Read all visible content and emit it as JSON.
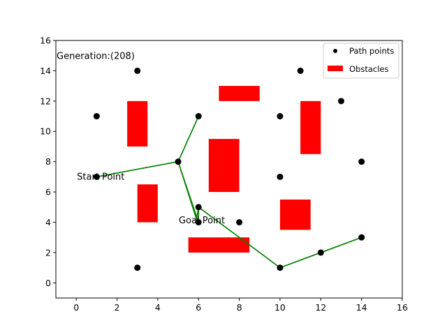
{
  "chart_data": {
    "type": "scatter",
    "title": "",
    "xlabel": "",
    "ylabel": "",
    "xlim": [
      -1,
      16
    ],
    "ylim": [
      -1,
      16
    ],
    "xticks": [
      0,
      2,
      4,
      6,
      8,
      10,
      12,
      14,
      16
    ],
    "yticks": [
      0,
      2,
      4,
      6,
      8,
      10,
      12,
      14,
      16
    ],
    "grid": false,
    "legend_position": "top-right",
    "annotations": [
      {
        "text": "Generation:(208)",
        "x": -1,
        "y": 15
      },
      {
        "text": "Start Point",
        "x": 0,
        "y": 7.05
      },
      {
        "text": "Goal Point",
        "x": 5,
        "y": 4.15
      }
    ],
    "legend": [
      {
        "label": "Path points",
        "marker": "dot",
        "color": "#000000"
      },
      {
        "label": "Obstacles",
        "marker": "rect",
        "color": "#ff0000"
      }
    ],
    "obstacles": {
      "name": "Obstacles",
      "color": "#ff0000",
      "rects": [
        {
          "x0": 2.5,
          "x1": 3.5,
          "y0": 9,
          "y1": 12
        },
        {
          "x0": 3,
          "x1": 4,
          "y0": 4,
          "y1": 6.5
        },
        {
          "x0": 7,
          "x1": 9,
          "y0": 12,
          "y1": 13
        },
        {
          "x0": 6.5,
          "x1": 8,
          "y0": 6,
          "y1": 9.5
        },
        {
          "x0": 5.5,
          "x1": 8.5,
          "y0": 2,
          "y1": 3
        },
        {
          "x0": 11,
          "x1": 12,
          "y0": 8.5,
          "y1": 12
        },
        {
          "x0": 10,
          "x1": 11.5,
          "y0": 3.5,
          "y1": 5.5
        }
      ]
    },
    "path_points": {
      "name": "Path points",
      "color": "#000000",
      "points": [
        {
          "x": 1,
          "y": 7
        },
        {
          "x": 1,
          "y": 11
        },
        {
          "x": 3,
          "y": 14
        },
        {
          "x": 3,
          "y": 1
        },
        {
          "x": 5,
          "y": 8
        },
        {
          "x": 6,
          "y": 11
        },
        {
          "x": 6,
          "y": 5
        },
        {
          "x": 6,
          "y": 4
        },
        {
          "x": 8,
          "y": 4
        },
        {
          "x": 10,
          "y": 11
        },
        {
          "x": 10,
          "y": 7
        },
        {
          "x": 10,
          "y": 1
        },
        {
          "x": 11,
          "y": 14
        },
        {
          "x": 12,
          "y": 2
        },
        {
          "x": 13,
          "y": 12
        },
        {
          "x": 14,
          "y": 8
        },
        {
          "x": 14,
          "y": 3
        }
      ]
    },
    "path": {
      "color": "#008000",
      "lines": [
        [
          [
            1,
            7
          ],
          [
            5,
            8
          ],
          [
            6,
            11
          ],
          [
            5,
            8
          ],
          [
            6,
            4
          ],
          [
            6,
            5
          ],
          [
            10,
            1
          ],
          [
            12,
            2
          ],
          [
            14,
            3
          ]
        ],
        [
          [
            1,
            7
          ],
          [
            5,
            8
          ],
          [
            6,
            11
          ],
          [
            5,
            8
          ],
          [
            5.9,
            4.2
          ],
          [
            6,
            5
          ],
          [
            10,
            1
          ],
          [
            12,
            2
          ],
          [
            14,
            3
          ]
        ]
      ]
    }
  }
}
